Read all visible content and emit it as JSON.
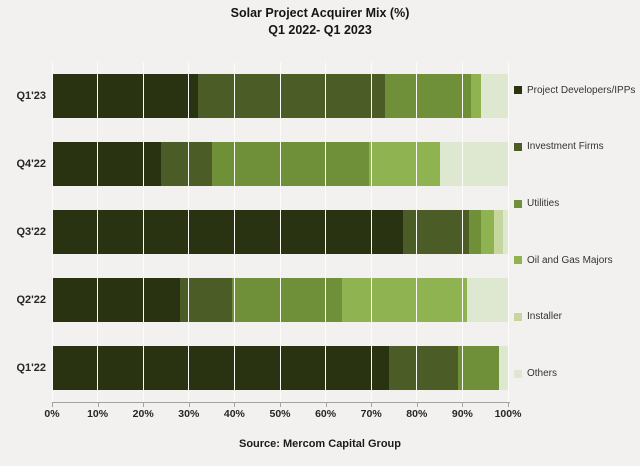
{
  "title": {
    "line1": "Solar Project Acquirer Mix (%)",
    "line2": "Q1 2022- Q1 2023"
  },
  "source": "Source: Mercom Capital Group",
  "chart_data": {
    "type": "bar",
    "orientation": "horizontal",
    "stacked": true,
    "title": "Solar Project Acquirer Mix (%) Q1 2022- Q1 2023",
    "categories": [
      "Q1'23",
      "Q4'22",
      "Q3'22",
      "Q2'22",
      "Q1'22"
    ],
    "series": [
      {
        "name": "Project Developers/IPPs",
        "color": "#293312",
        "values": [
          32,
          24,
          77,
          28,
          74
        ]
      },
      {
        "name": "Investment Firms",
        "color": "#4c5c26",
        "values": [
          41,
          11,
          14.5,
          11.5,
          15
        ]
      },
      {
        "name": "Utilities",
        "color": "#6f8f38",
        "values": [
          19,
          34.5,
          2.5,
          24,
          9
        ]
      },
      {
        "name": "Oil and Gas Majors",
        "color": "#90b351",
        "values": [
          2,
          15.5,
          3,
          27.5,
          0
        ]
      },
      {
        "name": "Installer",
        "color": "#c5d69e",
        "values": [
          0,
          0,
          2,
          0,
          0
        ]
      },
      {
        "name": "Others",
        "color": "#dee7d0",
        "values": [
          6,
          15,
          1,
          9,
          2
        ]
      }
    ],
    "x_ticks": [
      "0%",
      "10%",
      "20%",
      "30%",
      "40%",
      "50%",
      "60%",
      "70%",
      "80%",
      "90%",
      "100%"
    ],
    "xlim": [
      0,
      100
    ],
    "grid": true,
    "legend_position": "right",
    "background": "#f2f1ef",
    "gridline_color": "#fbfbf8",
    "axis_color": "#a3a3a0"
  }
}
